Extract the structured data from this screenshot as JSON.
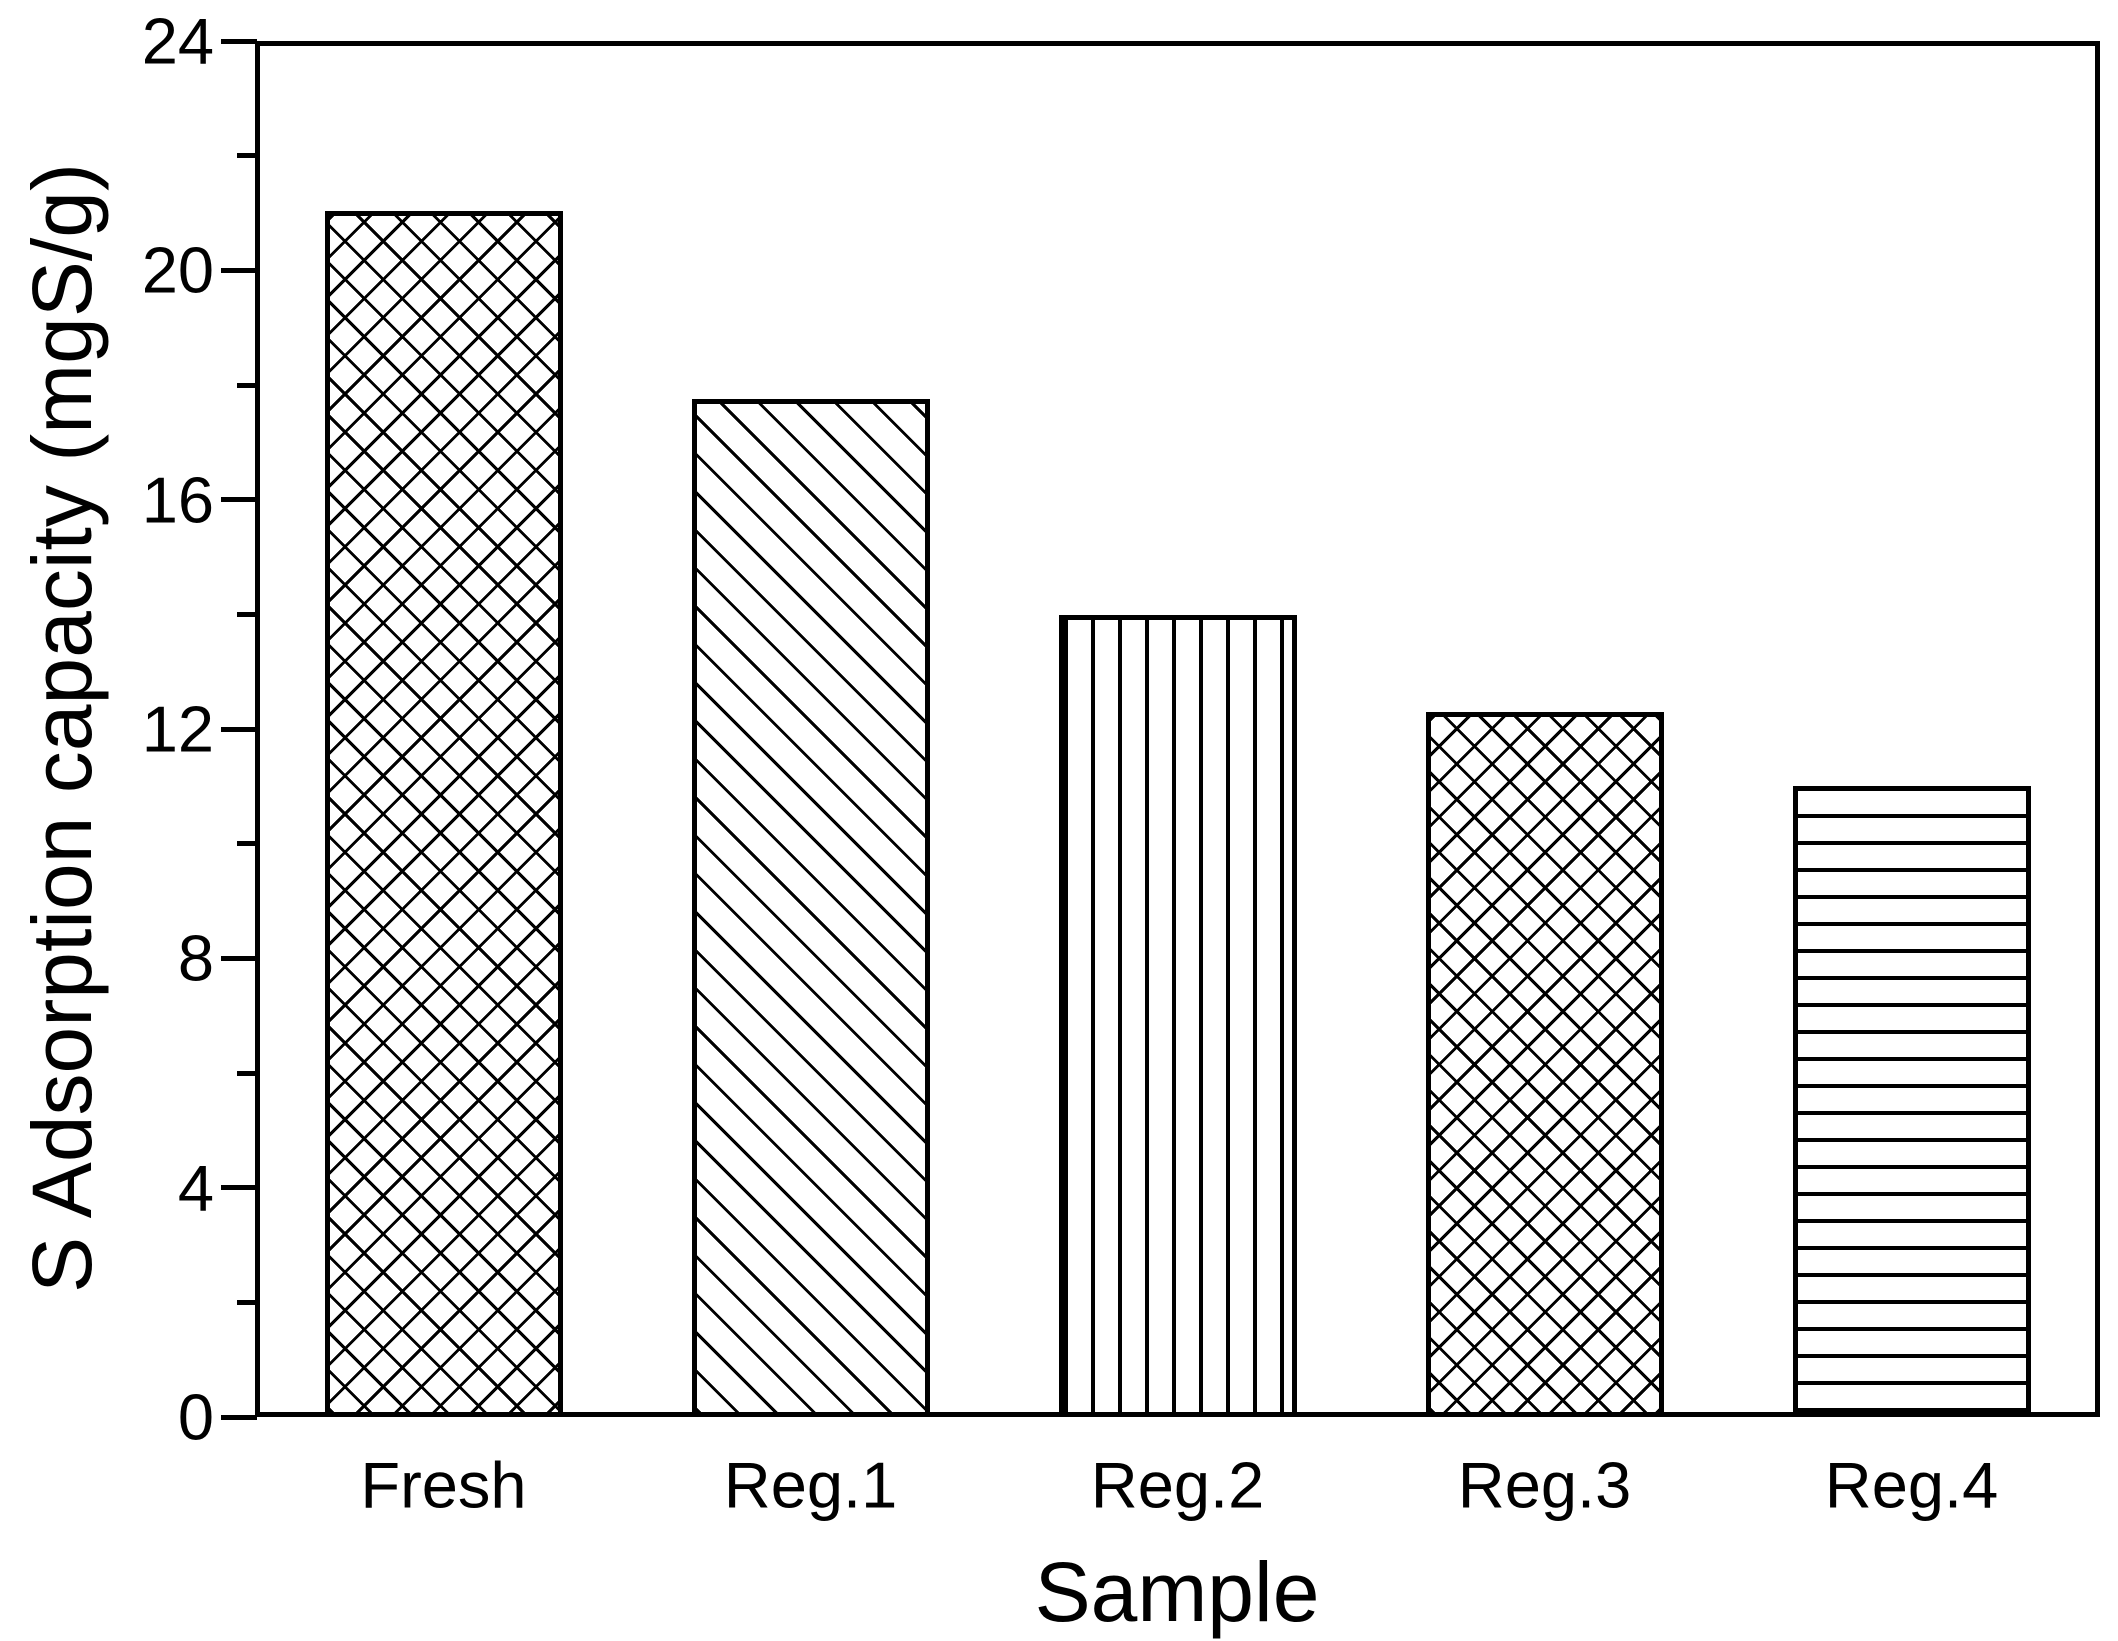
{
  "chart_data": {
    "type": "bar",
    "title": "",
    "xlabel": "Sample",
    "ylabel": "S Adsorption capacity (mgS/g)",
    "categories": [
      "Fresh",
      "Reg.1",
      "Reg.2",
      "Reg.3",
      "Reg.4"
    ],
    "values": [
      21.1,
      17.8,
      14.0,
      12.3,
      11.0
    ],
    "series": [
      {
        "name": "S adsorption capacity",
        "values": [
          21.1,
          17.8,
          14.0,
          12.3,
          11.0
        ]
      }
    ],
    "bars": [
      {
        "label": "Fresh",
        "value": 21.1,
        "pattern": "crosshatch-diagonal"
      },
      {
        "label": "Reg.1",
        "value": 17.8,
        "pattern": "diagonal-down"
      },
      {
        "label": "Reg.2",
        "value": 14.0,
        "pattern": "vertical-lines"
      },
      {
        "label": "Reg.3",
        "value": 12.3,
        "pattern": "crosshatch-diagonal-fine"
      },
      {
        "label": "Reg.4",
        "value": 11.0,
        "pattern": "horizontal-lines"
      }
    ],
    "ylim": [
      0,
      24
    ],
    "y_major_ticks": [
      0,
      4,
      8,
      12,
      16,
      20,
      24
    ],
    "y_minor_ticks": [
      2,
      6,
      10,
      14,
      18,
      22
    ],
    "grid": false,
    "legend_position": "none",
    "bar_fill_color": "#ffffff",
    "stroke_color": "#000000",
    "background_color": "#ffffff"
  }
}
